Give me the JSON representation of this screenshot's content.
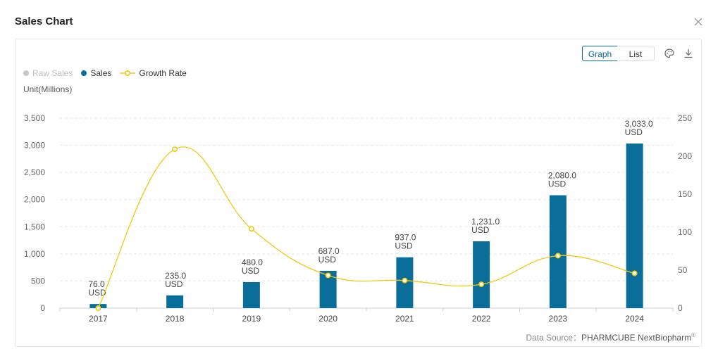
{
  "header": {
    "title": "Sales Chart"
  },
  "toolbar": {
    "graph_label": "Graph",
    "list_label": "List"
  },
  "legend": {
    "items": [
      {
        "label": "Raw Sales",
        "color": "#c8c8c8",
        "active": false
      },
      {
        "label": "Sales",
        "color": "#0b6e99",
        "active": true
      },
      {
        "label": "Growth Rate",
        "color": "#f2c811",
        "active": true
      }
    ]
  },
  "unit_label": "Unit(Millions)",
  "source": {
    "prefix": "Data Source：",
    "name": "PHARMCUBE NextBiopharm",
    "mark": "®"
  },
  "colors": {
    "bar": "#0b6e99",
    "line": "#f2c811",
    "axis_text": "#666666",
    "grid": "#e8e8e8"
  },
  "chart_data": {
    "type": "bar",
    "categories": [
      "2017",
      "2018",
      "2019",
      "2020",
      "2021",
      "2022",
      "2023",
      "2024"
    ],
    "series": [
      {
        "name": "Sales",
        "type": "bar",
        "axis": "left",
        "values": [
          76.0,
          235.0,
          480.0,
          687.0,
          937.0,
          1231.0,
          2080.0,
          3033.0
        ]
      },
      {
        "name": "Growth Rate",
        "type": "line",
        "smooth": true,
        "axis": "right",
        "values": [
          0,
          209.2,
          104.3,
          43.1,
          36.4,
          31.4,
          69.0,
          45.8
        ]
      }
    ],
    "data_labels": [
      "76.0",
      "235.0",
      "480.0",
      "687.0",
      "937.0",
      "1,231.0",
      "2,080.0",
      "3,033.0"
    ],
    "data_label_unit": "USD",
    "y_left": {
      "ticks": [
        "0",
        "500",
        "1,000",
        "1,500",
        "2,000",
        "2,500",
        "3,000",
        "3,500"
      ],
      "values": [
        0,
        500,
        1000,
        1500,
        2000,
        2500,
        3000,
        3500
      ],
      "ylim": [
        0,
        3500
      ]
    },
    "y_right": {
      "ticks": [
        "0",
        "50",
        "100",
        "150",
        "200",
        "250"
      ],
      "values": [
        0,
        50,
        100,
        150,
        200,
        250
      ],
      "ylim": [
        0,
        250
      ]
    },
    "grid": true,
    "legend_position": "top-left"
  }
}
